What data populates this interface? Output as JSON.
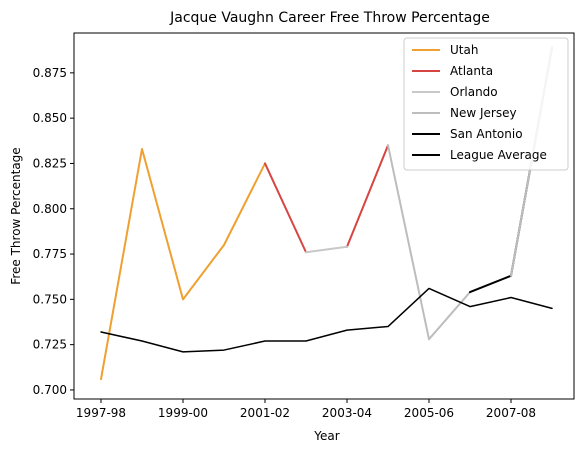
{
  "chart_data": {
    "type": "line",
    "title": "Jacque Vaughn Career Free Throw Percentage",
    "xlabel": "Year",
    "ylabel": "Free Throw Percentage",
    "x": [
      "1997-98",
      "1998-99",
      "1999-00",
      "2000-01",
      "2001-02",
      "2002-03",
      "2003-04",
      "2004-05",
      "2005-06",
      "2006-07",
      "2007-08",
      "2008-09"
    ],
    "xticks": [
      "1997-98",
      "1999-00",
      "2001-02",
      "2003-04",
      "2005-06",
      "2007-08"
    ],
    "yticks": [
      "0.700",
      "0.725",
      "0.750",
      "0.775",
      "0.800",
      "0.825",
      "0.850",
      "0.875"
    ],
    "ylim": [
      0.695,
      0.897
    ],
    "legend_position": "top-right",
    "series": [
      {
        "name": "Utah",
        "color": "#f0a030",
        "points": [
          [
            "1997-98",
            0.706
          ],
          [
            "1998-99",
            0.833
          ],
          [
            "1999-00",
            0.75
          ],
          [
            "2000-01",
            0.78
          ],
          [
            "2001-02",
            0.825
          ]
        ]
      },
      {
        "name": "Atlanta",
        "color": "#d64541",
        "points": [
          [
            "2001-02",
            0.825
          ],
          [
            "2002-03",
            0.776
          ]
        ]
      },
      {
        "name": "Atlanta",
        "color": "#d64541",
        "points": [
          [
            "2003-04",
            0.779
          ],
          [
            "2004-05",
            0.835
          ]
        ]
      },
      {
        "name": "Orlando",
        "color": "#c8c8c8",
        "points": [
          [
            "2002-03",
            0.776
          ],
          [
            "2003-04",
            0.779
          ]
        ]
      },
      {
        "name": "New Jersey",
        "color": "#bdbdbd",
        "points": [
          [
            "2004-05",
            0.835
          ],
          [
            "2005-06",
            0.728
          ],
          [
            "2006-07",
            0.754
          ]
        ]
      },
      {
        "name": "San Antonio",
        "color": "#000000",
        "points": [
          [
            "2006-07",
            0.754
          ],
          [
            "2007-08",
            0.763
          ],
          [
            "2008-09",
            0.889
          ]
        ]
      },
      {
        "name": "New Jersey",
        "color": "#bdbdbd",
        "points": [
          [
            "2007-08",
            0.763
          ],
          [
            "2008-09",
            0.889
          ]
        ]
      },
      {
        "name": "League Average",
        "color": "#000000",
        "points": [
          [
            "1997-98",
            0.732
          ],
          [
            "1998-99",
            0.727
          ],
          [
            "1999-00",
            0.721
          ],
          [
            "2000-01",
            0.722
          ],
          [
            "2001-02",
            0.727
          ],
          [
            "2002-03",
            0.727
          ],
          [
            "2003-04",
            0.733
          ],
          [
            "2004-05",
            0.735
          ],
          [
            "2005-06",
            0.756
          ],
          [
            "2006-07",
            0.746
          ],
          [
            "2007-08",
            0.751
          ],
          [
            "2008-09",
            0.745
          ]
        ]
      }
    ],
    "legend": [
      {
        "label": "Utah",
        "color": "#f0a030"
      },
      {
        "label": "Atlanta",
        "color": "#d64541"
      },
      {
        "label": "Orlando",
        "color": "#c8c8c8"
      },
      {
        "label": "New Jersey",
        "color": "#bdbdbd"
      },
      {
        "label": "San Antonio",
        "color": "#000000"
      },
      {
        "label": "League Average",
        "color": "#000000"
      }
    ]
  }
}
